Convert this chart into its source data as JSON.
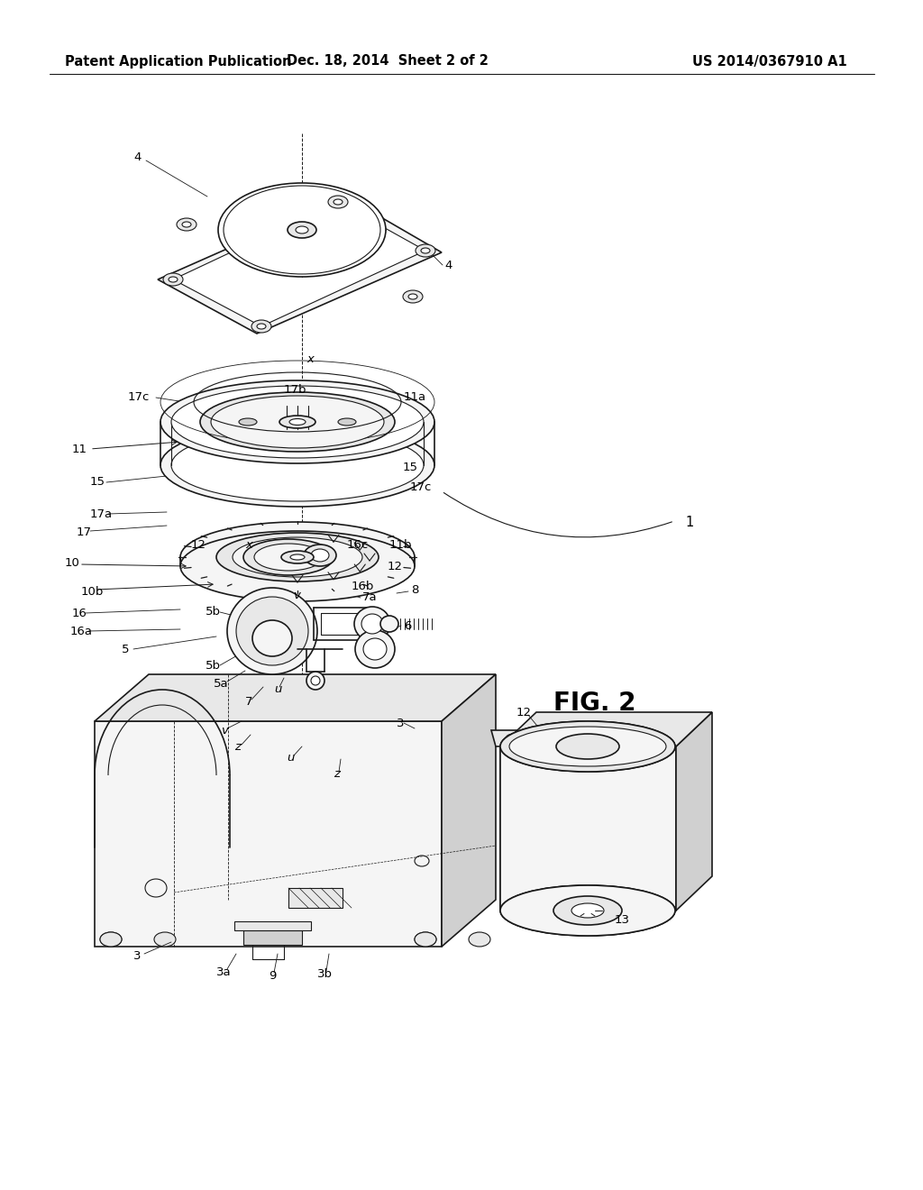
{
  "background_color": "#ffffff",
  "header_left": "Patent Application Publication",
  "header_center": "Dec. 18, 2014  Sheet 2 of 2",
  "header_right": "US 2014/0367910 A1",
  "figure_label": "FIG. 2",
  "title_fontsize": 10.5,
  "fig_label_fontsize": 20,
  "label_fontsize": 9.5,
  "line_color": "#1a1a1a",
  "fill_white": "#ffffff",
  "fill_light": "#f5f5f5",
  "fill_mid": "#e8e8e8",
  "fill_dark": "#d0d0d0"
}
